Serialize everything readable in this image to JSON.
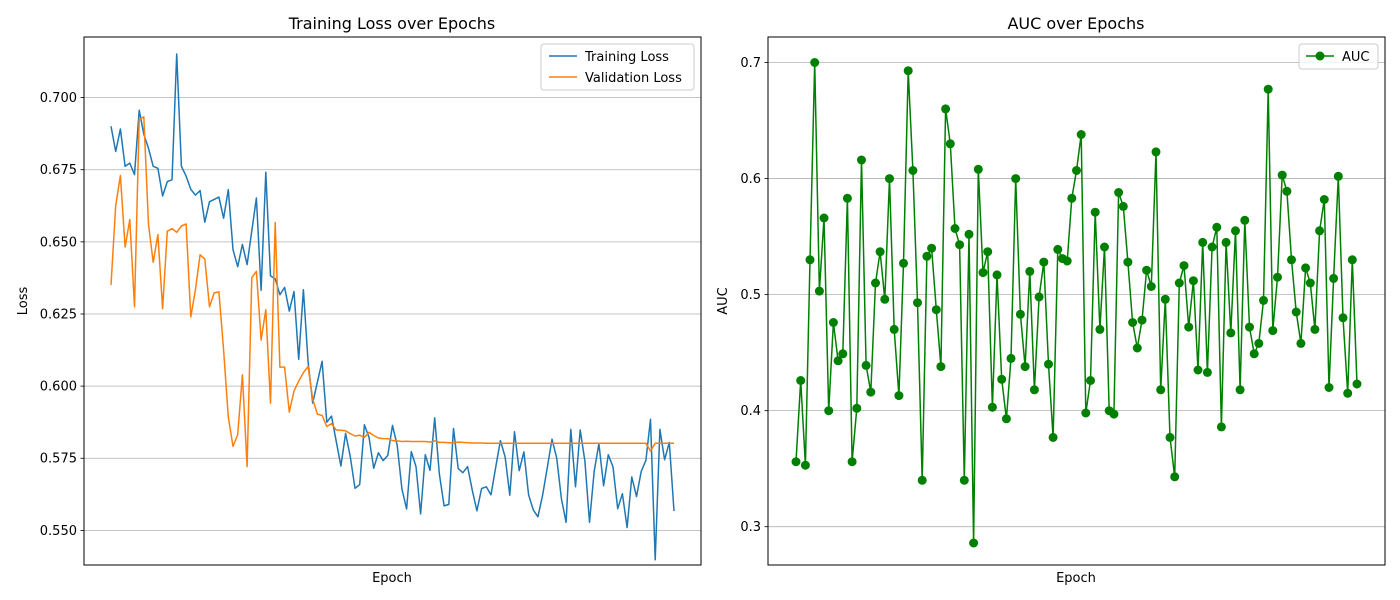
{
  "chart_data": [
    {
      "type": "line",
      "title": "Training Loss over Epochs",
      "xlabel": "Epoch",
      "ylabel": "Loss",
      "ylim": [
        0.538,
        0.721
      ],
      "yticks": [
        "0.550",
        "0.575",
        "0.600",
        "0.625",
        "0.650",
        "0.675",
        "0.700"
      ],
      "grid": "y",
      "legend": "top-right",
      "series": [
        {
          "name": "Training Loss",
          "color": "#1f77b4",
          "values": [
            0.6901,
            0.6813,
            0.6891,
            0.6762,
            0.6773,
            0.6733,
            0.6956,
            0.6873,
            0.6824,
            0.6762,
            0.6755,
            0.6659,
            0.6709,
            0.6715,
            0.7151,
            0.6762,
            0.6728,
            0.6682,
            0.6662,
            0.6678,
            0.6568,
            0.6639,
            0.6647,
            0.6655,
            0.6582,
            0.6681,
            0.6473,
            0.6414,
            0.6491,
            0.6421,
            0.6538,
            0.6652,
            0.6332,
            0.6741,
            0.6382,
            0.6372,
            0.6317,
            0.6342,
            0.626,
            0.6328,
            0.6093,
            0.6334,
            0.6083,
            0.5941,
            0.6014,
            0.6086,
            0.5875,
            0.5896,
            0.5809,
            0.5723,
            0.5836,
            0.5755,
            0.5646,
            0.5659,
            0.5866,
            0.5823,
            0.5715,
            0.5769,
            0.5742,
            0.576,
            0.5864,
            0.5795,
            0.5644,
            0.5574,
            0.5773,
            0.5721,
            0.5557,
            0.5762,
            0.5708,
            0.589,
            0.5694,
            0.5585,
            0.559,
            0.5853,
            0.5714,
            0.57,
            0.5721,
            0.5639,
            0.5568,
            0.5645,
            0.5651,
            0.5623,
            0.5719,
            0.5811,
            0.5755,
            0.5622,
            0.5842,
            0.5707,
            0.5772,
            0.5623,
            0.5571,
            0.5547,
            0.5622,
            0.5718,
            0.5816,
            0.5751,
            0.561,
            0.5528,
            0.585,
            0.5651,
            0.5848,
            0.574,
            0.5528,
            0.5705,
            0.58,
            0.5655,
            0.5762,
            0.572,
            0.5575,
            0.5627,
            0.551,
            0.5685,
            0.5617,
            0.5704,
            0.5743,
            0.5885,
            0.5398,
            0.585,
            0.5745,
            0.5805,
            0.5567
          ]
        },
        {
          "name": "Validation Loss",
          "color": "#ff7f0e",
          "values": [
            0.635,
            0.6625,
            0.673,
            0.6482,
            0.6577,
            0.6275,
            0.6924,
            0.6933,
            0.656,
            0.6429,
            0.6525,
            0.6268,
            0.6537,
            0.6546,
            0.6533,
            0.6555,
            0.6562,
            0.624,
            0.6333,
            0.6455,
            0.6441,
            0.6275,
            0.6323,
            0.6327,
            0.6125,
            0.5893,
            0.5791,
            0.5832,
            0.6039,
            0.5721,
            0.6376,
            0.6398,
            0.616,
            0.6265,
            0.5941,
            0.6567,
            0.6066,
            0.6066,
            0.591,
            0.5983,
            0.6017,
            0.6047,
            0.6068,
            0.5955,
            0.5903,
            0.5898,
            0.586,
            0.587,
            0.5848,
            0.5847,
            0.5845,
            0.5835,
            0.5827,
            0.583,
            0.5822,
            0.584,
            0.5829,
            0.582,
            0.5818,
            0.5818,
            0.5811,
            0.581,
            0.5808,
            0.5809,
            0.5808,
            0.5808,
            0.5808,
            0.5808,
            0.5806,
            0.581,
            0.5805,
            0.5805,
            0.5804,
            0.5804,
            0.5806,
            0.5805,
            0.5804,
            0.5803,
            0.5803,
            0.5803,
            0.5802,
            0.5802,
            0.5802,
            0.5802,
            0.5802,
            0.5802,
            0.5802,
            0.5802,
            0.5802,
            0.5802,
            0.5802,
            0.5802,
            0.5802,
            0.5802,
            0.5802,
            0.5802,
            0.5802,
            0.5802,
            0.5802,
            0.5802,
            0.5802,
            0.5802,
            0.5802,
            0.5802,
            0.5802,
            0.5802,
            0.5802,
            0.5802,
            0.5802,
            0.5802,
            0.5802,
            0.5802,
            0.5802,
            0.5802,
            0.5802,
            0.5775,
            0.5802,
            0.5802,
            0.5802,
            0.5802,
            0.5802
          ]
        }
      ]
    },
    {
      "type": "line",
      "title": "AUC over Epochs",
      "xlabel": "Epoch",
      "ylabel": "AUC",
      "ylim": [
        0.267,
        0.722
      ],
      "yticks": [
        "0.3",
        "0.4",
        "0.5",
        "0.6",
        "0.7"
      ],
      "grid": "y",
      "legend": "top-right",
      "series": [
        {
          "name": "AUC",
          "color": "#008000",
          "values": [
            0.356,
            0.426,
            0.353,
            0.53,
            0.7,
            0.503,
            0.566,
            0.4,
            0.476,
            0.443,
            0.449,
            0.583,
            0.356,
            0.402,
            0.616,
            0.439,
            0.416,
            0.51,
            0.537,
            0.496,
            0.6,
            0.47,
            0.413,
            0.527,
            0.693,
            0.607,
            0.493,
            0.34,
            0.533,
            0.54,
            0.487,
            0.438,
            0.66,
            0.63,
            0.557,
            0.543,
            0.34,
            0.552,
            0.286,
            0.608,
            0.519,
            0.537,
            0.403,
            0.517,
            0.427,
            0.393,
            0.445,
            0.6,
            0.483,
            0.438,
            0.52,
            0.418,
            0.498,
            0.528,
            0.44,
            0.377,
            0.539,
            0.531,
            0.529,
            0.583,
            0.607,
            0.638,
            0.398,
            0.426,
            0.571,
            0.47,
            0.541,
            0.4,
            0.397,
            0.588,
            0.576,
            0.528,
            0.476,
            0.454,
            0.478,
            0.521,
            0.507,
            0.623,
            0.418,
            0.496,
            0.377,
            0.343,
            0.51,
            0.525,
            0.472,
            0.512,
            0.435,
            0.545,
            0.433,
            0.541,
            0.558,
            0.386,
            0.545,
            0.467,
            0.555,
            0.418,
            0.564,
            0.472,
            0.449,
            0.458,
            0.495,
            0.677,
            0.469,
            0.515,
            0.603,
            0.589,
            0.53,
            0.485,
            0.458,
            0.523,
            0.51,
            0.47,
            0.555,
            0.582,
            0.42,
            0.514,
            0.602,
            0.48,
            0.415,
            0.53,
            0.423
          ]
        }
      ]
    }
  ]
}
